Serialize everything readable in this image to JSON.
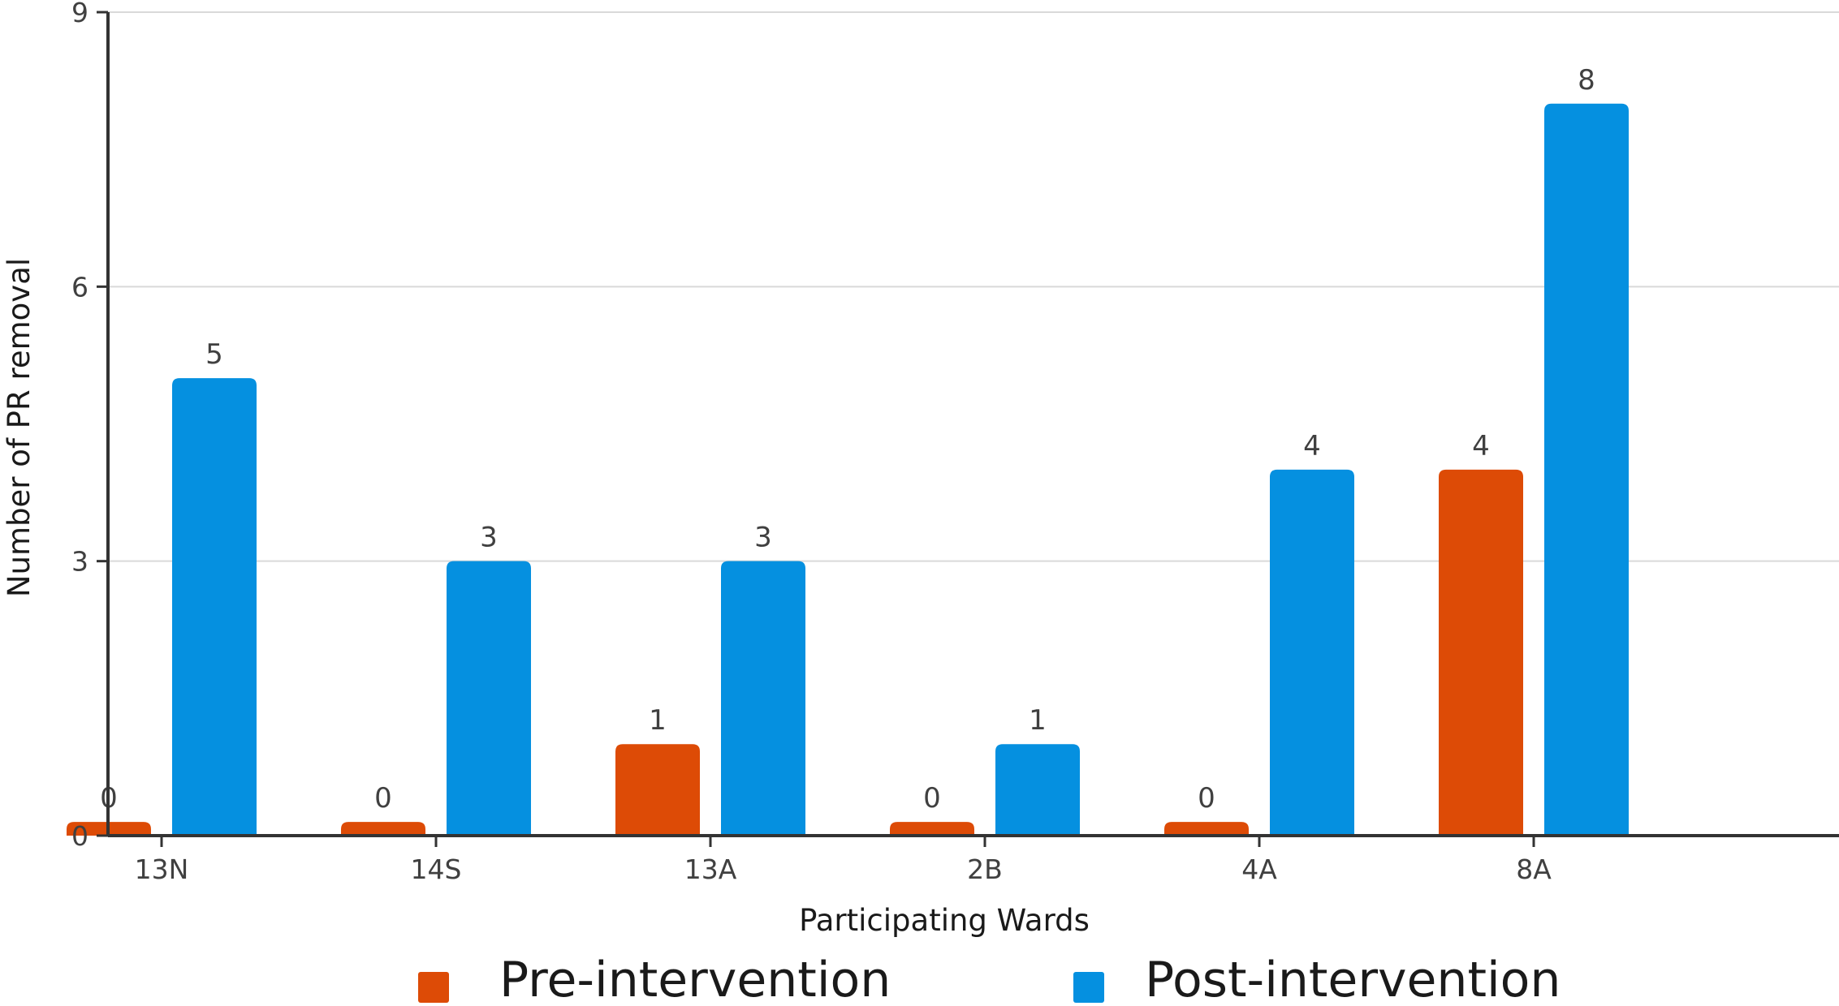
{
  "chart_data": {
    "type": "bar",
    "xlabel": "Participating Wards",
    "ylabel": "Number of PR removal",
    "categories": [
      "13N",
      "14S",
      "13A",
      "2B",
      "4A",
      "8A"
    ],
    "series": [
      {
        "name": "Pre-intervention",
        "color": "#DD4B06",
        "values": [
          0,
          0,
          1,
          0,
          0,
          4
        ]
      },
      {
        "name": "Post-intervention",
        "color": "#0590E0",
        "values": [
          5,
          3,
          3,
          1,
          4,
          8
        ]
      }
    ],
    "ylim": [
      0,
      9
    ],
    "yticks": [
      0,
      3,
      6,
      9
    ],
    "grid": true,
    "gridColor": "#d9d9d9",
    "axisColor": "#333333",
    "legend_position": "bottom"
  }
}
